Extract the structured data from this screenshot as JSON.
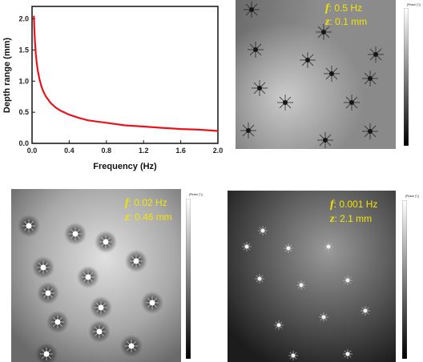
{
  "chart_data": {
    "type": "line",
    "xlabel": "Frequency (Hz)",
    "ylabel": "Depth range (mm)",
    "xlim": [
      0,
      2.0
    ],
    "ylim": [
      0,
      2.2
    ],
    "xticks": [
      "0.0",
      "0.4",
      "0.8",
      "1.2",
      "1.6",
      "2.0"
    ],
    "yticks": [
      "0.0",
      "0.5",
      "1.0",
      "1.5",
      "2.0"
    ],
    "grid": false,
    "series": [
      {
        "color": "#e8141b",
        "x": [
          0.02,
          0.025,
          0.03,
          0.04,
          0.05,
          0.06,
          0.08,
          0.1,
          0.12,
          0.15,
          0.2,
          0.25,
          0.3,
          0.4,
          0.5,
          0.6,
          0.7,
          0.8,
          1.0,
          1.2,
          1.4,
          1.6,
          1.8,
          2.0
        ],
        "y": [
          2.05,
          1.83,
          1.67,
          1.45,
          1.3,
          1.18,
          1.03,
          0.92,
          0.84,
          0.75,
          0.65,
          0.58,
          0.53,
          0.46,
          0.41,
          0.37,
          0.35,
          0.33,
          0.29,
          0.27,
          0.25,
          0.23,
          0.22,
          0.2
        ]
      }
    ]
  },
  "panels": [
    {
      "f_label": "f",
      "f_value": "0.5 Hz",
      "z_label": "z",
      "z_value": "0.1 mm",
      "scale_title": "[Phase (°)]"
    },
    {
      "f_label": "f",
      "f_value": "0.02 Hz",
      "z_label": "z",
      "z_value": "0.46 mm",
      "scale_title": "[Phase (°)]"
    },
    {
      "f_label": "f",
      "f_value": "0.001 Hz",
      "z_label": "z",
      "z_value": "2.1 mm",
      "scale_title": "[Phase (°)]"
    }
  ],
  "colors": {
    "line": "#e8141b",
    "annotation": "#f2e600"
  }
}
